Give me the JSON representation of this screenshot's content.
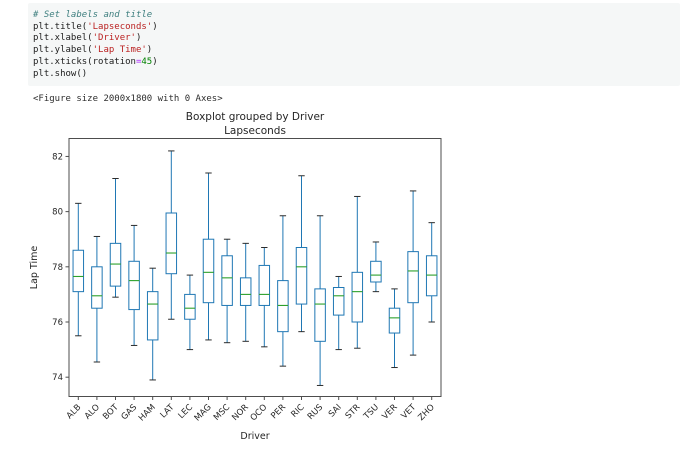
{
  "code_cell": {
    "lines": [
      [
        {
          "text": "# Set labels and title",
          "type": "comment"
        }
      ],
      [
        {
          "text": "plt.title(",
          "type": "plain"
        },
        {
          "text": "'Lapseconds'",
          "type": "string"
        },
        {
          "text": ")",
          "type": "plain"
        }
      ],
      [
        {
          "text": "plt.xlabel(",
          "type": "plain"
        },
        {
          "text": "'Driver'",
          "type": "string"
        },
        {
          "text": ")",
          "type": "plain"
        }
      ],
      [
        {
          "text": "plt.ylabel(",
          "type": "plain"
        },
        {
          "text": "'Lap Time'",
          "type": "string"
        },
        {
          "text": ")",
          "type": "plain"
        }
      ],
      [
        {
          "text": "plt.xticks(rotation",
          "type": "plain"
        },
        {
          "text": "=",
          "type": "operator"
        },
        {
          "text": "45",
          "type": "number"
        },
        {
          "text": ")",
          "type": "plain"
        }
      ],
      [
        {
          "text": "plt.show()",
          "type": "plain"
        }
      ]
    ]
  },
  "output_text": "<Figure size 2000x1800 with 0 Axes>",
  "chart_data": {
    "type": "boxplot",
    "title": "Boxplot grouped by Driver",
    "subtitle": "Lapseconds",
    "xlabel": "Driver",
    "ylabel": "Lap Time",
    "ylim": [
      73.3,
      82.65
    ],
    "yticks": [
      74,
      76,
      78,
      80,
      82
    ],
    "xtick_rotation": 45,
    "grid": false,
    "legend": false,
    "colors": {
      "box": "#1f77b4",
      "median": "#2ca02c",
      "cap": "#2b2b2b",
      "spine": "#4d4d4d",
      "text": "#262626"
    },
    "categories": [
      "ALB",
      "ALO",
      "BOT",
      "GAS",
      "HAM",
      "LAT",
      "LEC",
      "MAG",
      "MSC",
      "NOR",
      "OCO",
      "PER",
      "RIC",
      "RUS",
      "SAI",
      "STR",
      "TSU",
      "VER",
      "VET",
      "ZHO"
    ],
    "boxes": [
      {
        "label": "ALB",
        "whislo": 75.5,
        "q1": 77.1,
        "med": 77.65,
        "q3": 78.6,
        "whishi": 80.3
      },
      {
        "label": "ALO",
        "whislo": 74.55,
        "q1": 76.5,
        "med": 76.95,
        "q3": 78.0,
        "whishi": 79.1
      },
      {
        "label": "BOT",
        "whislo": 76.9,
        "q1": 77.3,
        "med": 78.1,
        "q3": 78.85,
        "whishi": 81.2
      },
      {
        "label": "GAS",
        "whislo": 75.15,
        "q1": 76.45,
        "med": 77.5,
        "q3": 78.2,
        "whishi": 79.5
      },
      {
        "label": "HAM",
        "whislo": 73.9,
        "q1": 75.35,
        "med": 76.65,
        "q3": 77.1,
        "whishi": 77.95
      },
      {
        "label": "LAT",
        "whislo": 76.1,
        "q1": 77.75,
        "med": 78.5,
        "q3": 79.95,
        "whishi": 82.2
      },
      {
        "label": "LEC",
        "whislo": 75.0,
        "q1": 76.1,
        "med": 76.5,
        "q3": 77.0,
        "whishi": 77.7
      },
      {
        "label": "MAG",
        "whislo": 75.35,
        "q1": 76.7,
        "med": 77.8,
        "q3": 79.0,
        "whishi": 81.4
      },
      {
        "label": "MSC",
        "whislo": 75.25,
        "q1": 76.6,
        "med": 77.6,
        "q3": 78.4,
        "whishi": 79.0
      },
      {
        "label": "NOR",
        "whislo": 75.3,
        "q1": 76.6,
        "med": 77.0,
        "q3": 77.6,
        "whishi": 78.85
      },
      {
        "label": "OCO",
        "whislo": 75.1,
        "q1": 76.6,
        "med": 77.0,
        "q3": 78.05,
        "whishi": 78.7
      },
      {
        "label": "PER",
        "whislo": 74.4,
        "q1": 75.65,
        "med": 76.6,
        "q3": 77.5,
        "whishi": 79.85
      },
      {
        "label": "RIC",
        "whislo": 75.65,
        "q1": 76.65,
        "med": 78.0,
        "q3": 78.7,
        "whishi": 81.3
      },
      {
        "label": "RUS",
        "whislo": 73.7,
        "q1": 75.3,
        "med": 76.65,
        "q3": 77.2,
        "whishi": 79.85
      },
      {
        "label": "SAI",
        "whislo": 75.0,
        "q1": 76.25,
        "med": 76.95,
        "q3": 77.25,
        "whishi": 77.65
      },
      {
        "label": "STR",
        "whislo": 75.05,
        "q1": 76.0,
        "med": 77.1,
        "q3": 77.8,
        "whishi": 80.55
      },
      {
        "label": "TSU",
        "whislo": 77.1,
        "q1": 77.45,
        "med": 77.7,
        "q3": 78.2,
        "whishi": 78.9
      },
      {
        "label": "VER",
        "whislo": 74.35,
        "q1": 75.6,
        "med": 76.15,
        "q3": 76.5,
        "whishi": 77.2
      },
      {
        "label": "VET",
        "whislo": 74.8,
        "q1": 76.7,
        "med": 77.85,
        "q3": 78.55,
        "whishi": 80.75
      },
      {
        "label": "ZHO",
        "whislo": 76.0,
        "q1": 76.95,
        "med": 77.7,
        "q3": 78.4,
        "whishi": 79.6
      }
    ]
  }
}
